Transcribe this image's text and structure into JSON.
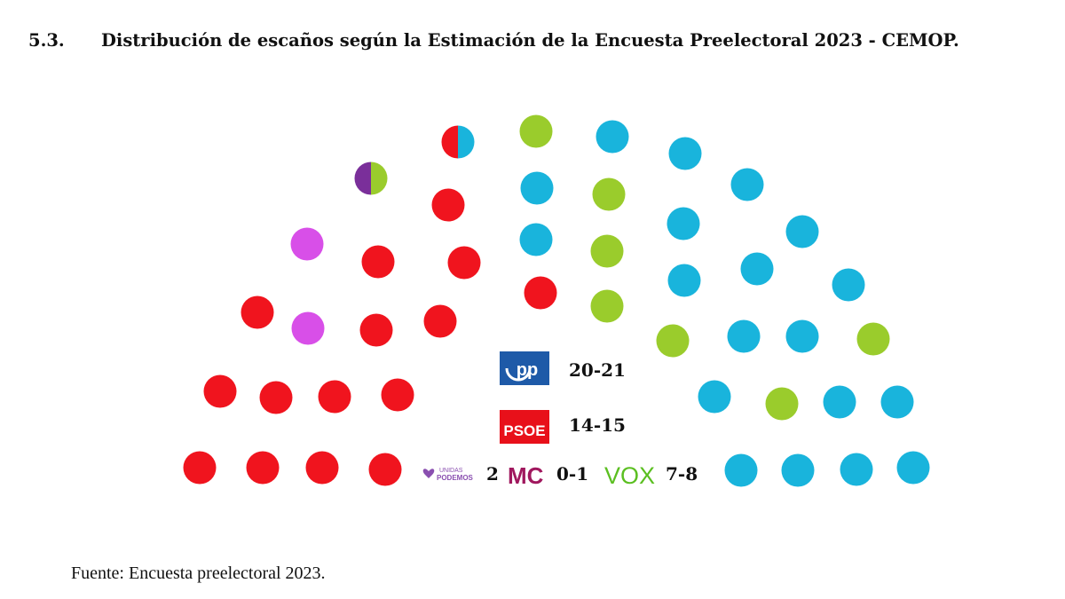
{
  "section_number": "5.3.",
  "title": "Distribución de escaños según la Estimación de la Encuesta Preelectoral 2023 - CEMOP.",
  "source": "Fuente: Encuesta preelectoral 2023.",
  "colors": {
    "PP": "#19b4dc",
    "PSOE": "#f0141e",
    "Podemos": "#d84fe8",
    "MC": "#7a2f9a",
    "VOX": "#9acc2c"
  },
  "chart_data": {
    "type": "parliament",
    "total_seats": 45,
    "parties": [
      {
        "name": "PP",
        "logo_text": "pp",
        "seats_label": "20-21",
        "seats_min": 20,
        "seats_max": 21
      },
      {
        "name": "PSOE",
        "logo_text": "PSOE",
        "seats_label": "14-15",
        "seats_min": 14,
        "seats_max": 15
      },
      {
        "name": "Podemos",
        "logo_text_top": "UNIDAS",
        "logo_text_bottom": "PODEMOS",
        "seats_label": "2",
        "seats_min": 2,
        "seats_max": 2
      },
      {
        "name": "MC",
        "logo_text": "MC",
        "seats_label": "0-1",
        "seats_min": 0,
        "seats_max": 1
      },
      {
        "name": "VOX",
        "logo_text": "VOX",
        "seats_label": "7-8",
        "seats_min": 7,
        "seats_max": 8
      }
    ],
    "seats": [
      "PSOE",
      "PSOE",
      "PSOE",
      "PSOE",
      "PSOE",
      "PSOE",
      "PSOE",
      "PSOE",
      "Podemos",
      "PSOE",
      "PSOE",
      "PSOE",
      "Podemos",
      "PSOE",
      "PSOE",
      "PSOE",
      "MC|VOX",
      "PSOE",
      "PSOE|PP",
      "VOX",
      "PP",
      "PP",
      "VOX",
      "PP",
      "PP",
      "VOX",
      "PP",
      "PP",
      "VOX",
      "PP",
      "PP",
      "PP",
      "VOX",
      "PP",
      "PP",
      "PP",
      "VOX",
      "PP",
      "VOX",
      "PP",
      "PP",
      "PP",
      "PP",
      "PP",
      "PP"
    ]
  }
}
